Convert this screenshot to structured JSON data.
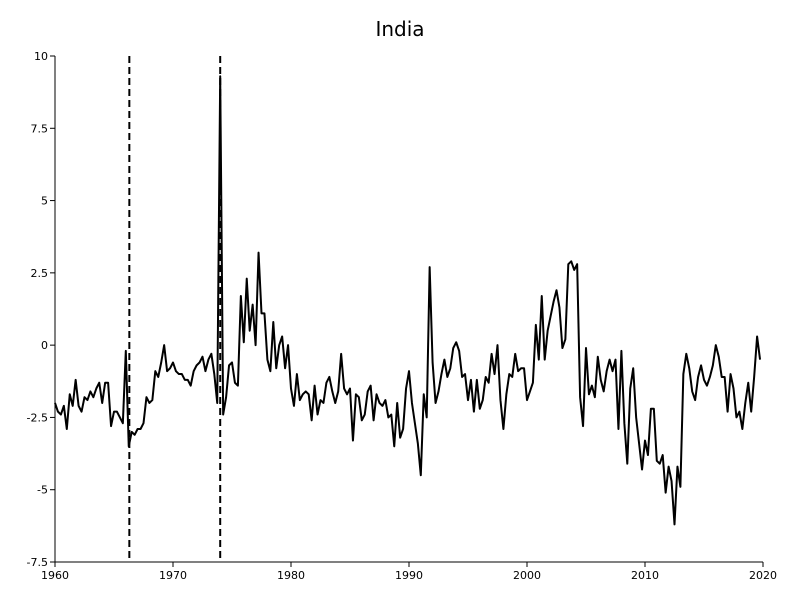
{
  "chart_data": {
    "type": "line",
    "title": "India",
    "xlabel": "",
    "ylabel": "",
    "xlim": [
      1960,
      2020
    ],
    "ylim": [
      -7.5,
      10
    ],
    "x_ticks": [
      1960,
      1970,
      1980,
      1990,
      2000,
      2010,
      2020
    ],
    "x_tick_labels": [
      "1960",
      "1970",
      "1980",
      "1990",
      "2000",
      "2010",
      "2020"
    ],
    "y_ticks": [
      10,
      7.5,
      5,
      2.5,
      0,
      -2.5,
      -5,
      -7.5
    ],
    "y_tick_labels": [
      "10",
      "7.5",
      "5",
      "2.5",
      "0",
      "-2.5",
      "-5",
      "-7.5"
    ],
    "grid": false,
    "legend": "none",
    "vertical_lines": [
      {
        "x": 1966.3,
        "style": "dashed"
      },
      {
        "x": 1974.0,
        "style": "dashed"
      }
    ],
    "series": [
      {
        "color": "#000000",
        "points": [
          [
            1960.0,
            -2.0
          ],
          [
            1960.25,
            -2.3
          ],
          [
            1960.5,
            -2.4
          ],
          [
            1960.75,
            -2.1
          ],
          [
            1961.0,
            -2.9
          ],
          [
            1961.25,
            -1.7
          ],
          [
            1961.5,
            -2.1
          ],
          [
            1961.75,
            -1.2
          ],
          [
            1962.0,
            -2.1
          ],
          [
            1962.25,
            -2.3
          ],
          [
            1962.5,
            -1.8
          ],
          [
            1962.75,
            -1.9
          ],
          [
            1963.0,
            -1.6
          ],
          [
            1963.25,
            -1.8
          ],
          [
            1963.5,
            -1.5
          ],
          [
            1963.75,
            -1.3
          ],
          [
            1964.0,
            -2.0
          ],
          [
            1964.25,
            -1.3
          ],
          [
            1964.5,
            -1.3
          ],
          [
            1964.75,
            -2.8
          ],
          [
            1965.0,
            -2.3
          ],
          [
            1965.25,
            -2.3
          ],
          [
            1965.5,
            -2.5
          ],
          [
            1965.75,
            -2.7
          ],
          [
            1966.0,
            -0.2
          ],
          [
            1966.25,
            -3.5
          ],
          [
            1966.5,
            -3.0
          ],
          [
            1966.75,
            -3.1
          ],
          [
            1967.0,
            -2.9
          ],
          [
            1967.25,
            -2.9
          ],
          [
            1967.5,
            -2.7
          ],
          [
            1967.75,
            -1.8
          ],
          [
            1968.0,
            -2.0
          ],
          [
            1968.25,
            -1.9
          ],
          [
            1968.5,
            -0.9
          ],
          [
            1968.75,
            -1.1
          ],
          [
            1969.0,
            -0.6
          ],
          [
            1969.25,
            0.0
          ],
          [
            1969.5,
            -0.9
          ],
          [
            1969.75,
            -0.8
          ],
          [
            1970.0,
            -0.6
          ],
          [
            1970.25,
            -0.9
          ],
          [
            1970.5,
            -1.0
          ],
          [
            1970.75,
            -1.0
          ],
          [
            1971.0,
            -1.2
          ],
          [
            1971.25,
            -1.2
          ],
          [
            1971.5,
            -1.4
          ],
          [
            1971.75,
            -0.9
          ],
          [
            1972.0,
            -0.7
          ],
          [
            1972.25,
            -0.6
          ],
          [
            1972.5,
            -0.4
          ],
          [
            1972.75,
            -0.9
          ],
          [
            1973.0,
            -0.5
          ],
          [
            1973.25,
            -0.3
          ],
          [
            1973.5,
            -1.0
          ],
          [
            1973.75,
            -2.0
          ],
          [
            1974.0,
            9.3
          ],
          [
            1974.25,
            -2.4
          ],
          [
            1974.5,
            -1.8
          ],
          [
            1974.75,
            -0.7
          ],
          [
            1975.0,
            -0.6
          ],
          [
            1975.25,
            -1.3
          ],
          [
            1975.5,
            -1.4
          ],
          [
            1975.75,
            1.7
          ],
          [
            1976.0,
            0.1
          ],
          [
            1976.25,
            2.3
          ],
          [
            1976.5,
            0.5
          ],
          [
            1976.75,
            1.4
          ],
          [
            1977.0,
            0.0
          ],
          [
            1977.25,
            3.2
          ],
          [
            1977.5,
            1.1
          ],
          [
            1977.75,
            1.1
          ],
          [
            1978.0,
            -0.5
          ],
          [
            1978.25,
            -0.9
          ],
          [
            1978.5,
            0.8
          ],
          [
            1978.75,
            -0.8
          ],
          [
            1979.0,
            0.0
          ],
          [
            1979.25,
            0.3
          ],
          [
            1979.5,
            -0.8
          ],
          [
            1979.75,
            0.0
          ],
          [
            1980.0,
            -1.5
          ],
          [
            1980.25,
            -2.1
          ],
          [
            1980.5,
            -1.0
          ],
          [
            1980.75,
            -1.9
          ],
          [
            1981.0,
            -1.7
          ],
          [
            1981.25,
            -1.6
          ],
          [
            1981.5,
            -1.7
          ],
          [
            1981.75,
            -2.6
          ],
          [
            1982.0,
            -1.4
          ],
          [
            1982.25,
            -2.4
          ],
          [
            1982.5,
            -1.9
          ],
          [
            1982.75,
            -2.0
          ],
          [
            1983.0,
            -1.3
          ],
          [
            1983.25,
            -1.1
          ],
          [
            1983.5,
            -1.6
          ],
          [
            1983.75,
            -2.0
          ],
          [
            1984.0,
            -1.6
          ],
          [
            1984.25,
            -0.3
          ],
          [
            1984.5,
            -1.5
          ],
          [
            1984.75,
            -1.7
          ],
          [
            1985.0,
            -1.5
          ],
          [
            1985.25,
            -3.3
          ],
          [
            1985.5,
            -1.7
          ],
          [
            1985.75,
            -1.8
          ],
          [
            1986.0,
            -2.6
          ],
          [
            1986.25,
            -2.4
          ],
          [
            1986.5,
            -1.6
          ],
          [
            1986.75,
            -1.4
          ],
          [
            1987.0,
            -2.6
          ],
          [
            1987.25,
            -1.7
          ],
          [
            1987.5,
            -2.0
          ],
          [
            1987.75,
            -2.1
          ],
          [
            1988.0,
            -1.9
          ],
          [
            1988.25,
            -2.5
          ],
          [
            1988.5,
            -2.4
          ],
          [
            1988.75,
            -3.5
          ],
          [
            1989.0,
            -2.0
          ],
          [
            1989.25,
            -3.2
          ],
          [
            1989.5,
            -2.9
          ],
          [
            1989.75,
            -1.5
          ],
          [
            1990.0,
            -0.9
          ],
          [
            1990.25,
            -2.0
          ],
          [
            1990.5,
            -2.7
          ],
          [
            1990.75,
            -3.4
          ],
          [
            1991.0,
            -4.5
          ],
          [
            1991.25,
            -1.7
          ],
          [
            1991.5,
            -2.5
          ],
          [
            1991.75,
            2.7
          ],
          [
            1992.0,
            -0.6
          ],
          [
            1992.25,
            -2.0
          ],
          [
            1992.5,
            -1.6
          ],
          [
            1992.75,
            -1.0
          ],
          [
            1993.0,
            -0.5
          ],
          [
            1993.25,
            -1.1
          ],
          [
            1993.5,
            -0.8
          ],
          [
            1993.75,
            -0.1
          ],
          [
            1994.0,
            0.1
          ],
          [
            1994.25,
            -0.2
          ],
          [
            1994.5,
            -1.1
          ],
          [
            1994.75,
            -1.0
          ],
          [
            1995.0,
            -1.9
          ],
          [
            1995.25,
            -1.2
          ],
          [
            1995.5,
            -2.3
          ],
          [
            1995.75,
            -1.2
          ],
          [
            1996.0,
            -2.2
          ],
          [
            1996.25,
            -1.9
          ],
          [
            1996.5,
            -1.1
          ],
          [
            1996.75,
            -1.3
          ],
          [
            1997.0,
            -0.3
          ],
          [
            1997.25,
            -1.0
          ],
          [
            1997.5,
            0.0
          ],
          [
            1997.75,
            -1.9
          ],
          [
            1998.0,
            -2.9
          ],
          [
            1998.25,
            -1.7
          ],
          [
            1998.5,
            -1.0
          ],
          [
            1998.75,
            -1.1
          ],
          [
            1999.0,
            -0.3
          ],
          [
            1999.25,
            -0.9
          ],
          [
            1999.5,
            -0.8
          ],
          [
            1999.75,
            -0.8
          ],
          [
            2000.0,
            -1.9
          ],
          [
            2000.25,
            -1.6
          ],
          [
            2000.5,
            -1.3
          ],
          [
            2000.75,
            0.7
          ],
          [
            2001.0,
            -0.5
          ],
          [
            2001.25,
            1.7
          ],
          [
            2001.5,
            -0.5
          ],
          [
            2001.75,
            0.5
          ],
          [
            2002.0,
            1.0
          ],
          [
            2002.25,
            1.5
          ],
          [
            2002.5,
            1.9
          ],
          [
            2002.75,
            1.3
          ],
          [
            2003.0,
            -0.1
          ],
          [
            2003.25,
            0.2
          ],
          [
            2003.5,
            2.8
          ],
          [
            2003.75,
            2.9
          ],
          [
            2004.0,
            2.6
          ],
          [
            2004.25,
            2.8
          ],
          [
            2004.5,
            -1.8
          ],
          [
            2004.75,
            -2.8
          ],
          [
            2005.0,
            -0.1
          ],
          [
            2005.25,
            -1.7
          ],
          [
            2005.5,
            -1.4
          ],
          [
            2005.75,
            -1.8
          ],
          [
            2006.0,
            -0.4
          ],
          [
            2006.25,
            -1.2
          ],
          [
            2006.5,
            -1.6
          ],
          [
            2006.75,
            -0.9
          ],
          [
            2007.0,
            -0.5
          ],
          [
            2007.25,
            -0.9
          ],
          [
            2007.5,
            -0.5
          ],
          [
            2007.75,
            -2.9
          ],
          [
            2008.0,
            -0.2
          ],
          [
            2008.25,
            -2.7
          ],
          [
            2008.5,
            -4.1
          ],
          [
            2008.75,
            -1.5
          ],
          [
            2009.0,
            -0.8
          ],
          [
            2009.25,
            -2.5
          ],
          [
            2009.5,
            -3.4
          ],
          [
            2009.75,
            -4.3
          ],
          [
            2010.0,
            -3.3
          ],
          [
            2010.25,
            -3.8
          ],
          [
            2010.5,
            -2.2
          ],
          [
            2010.75,
            -2.2
          ],
          [
            2011.0,
            -4.0
          ],
          [
            2011.25,
            -4.1
          ],
          [
            2011.5,
            -3.8
          ],
          [
            2011.75,
            -5.1
          ],
          [
            2012.0,
            -4.2
          ],
          [
            2012.25,
            -4.7
          ],
          [
            2012.5,
            -6.2
          ],
          [
            2012.75,
            -4.2
          ],
          [
            2013.0,
            -4.9
          ],
          [
            2013.25,
            -1.0
          ],
          [
            2013.5,
            -0.3
          ],
          [
            2013.75,
            -0.8
          ],
          [
            2014.0,
            -1.6
          ],
          [
            2014.25,
            -1.9
          ],
          [
            2014.5,
            -1.1
          ],
          [
            2014.75,
            -0.7
          ],
          [
            2015.0,
            -1.2
          ],
          [
            2015.25,
            -1.4
          ],
          [
            2015.5,
            -1.1
          ],
          [
            2015.75,
            -0.7
          ],
          [
            2016.0,
            0.0
          ],
          [
            2016.25,
            -0.4
          ],
          [
            2016.5,
            -1.1
          ],
          [
            2016.75,
            -1.1
          ],
          [
            2017.0,
            -2.3
          ],
          [
            2017.25,
            -1.0
          ],
          [
            2017.5,
            -1.5
          ],
          [
            2017.75,
            -2.5
          ],
          [
            2018.0,
            -2.3
          ],
          [
            2018.25,
            -2.9
          ],
          [
            2018.5,
            -2.0
          ],
          [
            2018.75,
            -1.3
          ],
          [
            2019.0,
            -2.3
          ],
          [
            2019.25,
            -1.1
          ],
          [
            2019.5,
            0.3
          ],
          [
            2019.75,
            -0.5
          ]
        ]
      }
    ]
  }
}
